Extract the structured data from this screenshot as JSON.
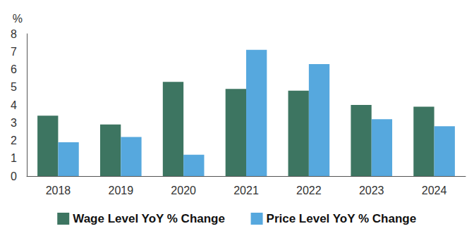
{
  "chart_data": {
    "type": "bar",
    "y_label": "%",
    "categories": [
      "2018",
      "2019",
      "2020",
      "2021",
      "2022",
      "2023",
      "2024"
    ],
    "series": [
      {
        "name": "Wage Level YoY % Change",
        "color": "#3d7561",
        "values": [
          3.4,
          2.9,
          5.3,
          4.9,
          4.8,
          4.0,
          3.9
        ]
      },
      {
        "name": "Price Level YoY % Change",
        "color": "#56a8de",
        "values": [
          1.9,
          2.2,
          1.2,
          7.1,
          6.3,
          3.2,
          2.8
        ]
      }
    ],
    "ylim": [
      0,
      8
    ],
    "yticks": [
      0,
      1,
      2,
      3,
      4,
      5,
      6,
      7,
      8
    ],
    "grid": false,
    "legend": "bottom"
  }
}
